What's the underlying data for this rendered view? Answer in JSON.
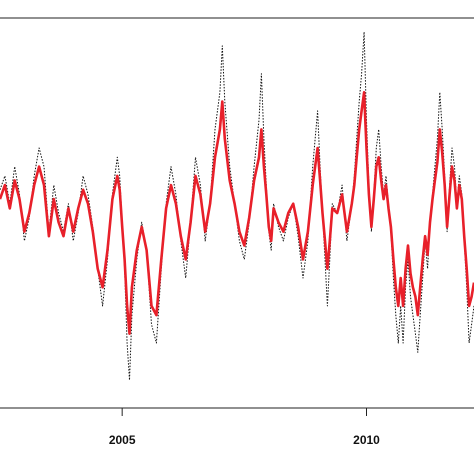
{
  "chart_data": {
    "type": "line",
    "title": "",
    "xlabel": "",
    "ylabel": "",
    "xlim": [
      2002.5,
      2012.2
    ],
    "ylim": [
      -4.2,
      4.2
    ],
    "grid": false,
    "x_ticks": [
      {
        "value": 2005,
        "label": "2005"
      },
      {
        "value": 2010,
        "label": "2010"
      }
    ],
    "series": [
      {
        "style": "dotted",
        "color": "#111111",
        "points": [
          [
            2002.5,
            0.5
          ],
          [
            2002.6,
            0.8
          ],
          [
            2002.7,
            0.2
          ],
          [
            2002.8,
            1.0
          ],
          [
            2002.9,
            0.4
          ],
          [
            2003.0,
            -0.6
          ],
          [
            2003.1,
            -0.1
          ],
          [
            2003.2,
            0.8
          ],
          [
            2003.3,
            1.4
          ],
          [
            2003.4,
            1.0
          ],
          [
            2003.5,
            -0.4
          ],
          [
            2003.6,
            0.6
          ],
          [
            2003.7,
            0.0
          ],
          [
            2003.8,
            -0.4
          ],
          [
            2003.9,
            0.2
          ],
          [
            2004.0,
            -0.6
          ],
          [
            2004.1,
            0.0
          ],
          [
            2004.2,
            0.8
          ],
          [
            2004.3,
            0.4
          ],
          [
            2004.4,
            -0.3
          ],
          [
            2004.5,
            -1.2
          ],
          [
            2004.6,
            -2.0
          ],
          [
            2004.7,
            -1.0
          ],
          [
            2004.8,
            0.4
          ],
          [
            2004.9,
            1.2
          ],
          [
            2004.95,
            0.8
          ],
          [
            2005.0,
            -0.2
          ],
          [
            2005.05,
            -1.2
          ],
          [
            2005.1,
            -2.8
          ],
          [
            2005.15,
            -3.6
          ],
          [
            2005.2,
            -2.2
          ],
          [
            2005.3,
            -1.0
          ],
          [
            2005.4,
            -0.2
          ],
          [
            2005.5,
            -0.8
          ],
          [
            2005.6,
            -2.4
          ],
          [
            2005.7,
            -2.8
          ],
          [
            2005.8,
            -1.2
          ],
          [
            2005.9,
            0.2
          ],
          [
            2006.0,
            1.0
          ],
          [
            2006.1,
            0.4
          ],
          [
            2006.2,
            -0.6
          ],
          [
            2006.3,
            -1.4
          ],
          [
            2006.4,
            -0.2
          ],
          [
            2006.5,
            1.2
          ],
          [
            2006.6,
            0.6
          ],
          [
            2006.7,
            -0.6
          ],
          [
            2006.8,
            0.2
          ],
          [
            2006.9,
            1.8
          ],
          [
            2007.0,
            2.6
          ],
          [
            2007.05,
            3.6
          ],
          [
            2007.1,
            2.4
          ],
          [
            2007.2,
            1.0
          ],
          [
            2007.3,
            0.2
          ],
          [
            2007.4,
            -0.6
          ],
          [
            2007.5,
            -1.0
          ],
          [
            2007.6,
            -0.2
          ],
          [
            2007.7,
            1.0
          ],
          [
            2007.8,
            2.0
          ],
          [
            2007.85,
            3.0
          ],
          [
            2007.9,
            1.6
          ],
          [
            2007.95,
            0.6
          ],
          [
            2008.0,
            -0.4
          ],
          [
            2008.05,
            -0.8
          ],
          [
            2008.1,
            0.2
          ],
          [
            2008.2,
            -0.3
          ],
          [
            2008.3,
            -0.6
          ],
          [
            2008.4,
            -0.1
          ],
          [
            2008.5,
            0.2
          ],
          [
            2008.6,
            -0.5
          ],
          [
            2008.7,
            -1.4
          ],
          [
            2008.8,
            -0.6
          ],
          [
            2008.9,
            1.0
          ],
          [
            2009.0,
            2.2
          ],
          [
            2009.05,
            1.0
          ],
          [
            2009.1,
            0.0
          ],
          [
            2009.15,
            -1.0
          ],
          [
            2009.2,
            -2.0
          ],
          [
            2009.25,
            -1.0
          ],
          [
            2009.3,
            0.2
          ],
          [
            2009.4,
            0.0
          ],
          [
            2009.5,
            0.6
          ],
          [
            2009.6,
            -0.6
          ],
          [
            2009.65,
            -0.2
          ],
          [
            2009.7,
            0.2
          ],
          [
            2009.75,
            0.8
          ],
          [
            2009.8,
            1.6
          ],
          [
            2009.85,
            2.4
          ],
          [
            2009.9,
            3.0
          ],
          [
            2009.95,
            3.9
          ],
          [
            2010.0,
            2.0
          ],
          [
            2010.05,
            0.6
          ],
          [
            2010.1,
            -0.4
          ],
          [
            2010.15,
            0.4
          ],
          [
            2010.2,
            1.4
          ],
          [
            2010.25,
            1.8
          ],
          [
            2010.3,
            1.0
          ],
          [
            2010.35,
            0.4
          ],
          [
            2010.4,
            0.8
          ],
          [
            2010.45,
            0.2
          ],
          [
            2010.5,
            -0.4
          ],
          [
            2010.55,
            -1.4
          ],
          [
            2010.6,
            -2.2
          ],
          [
            2010.65,
            -2.8
          ],
          [
            2010.7,
            -2.0
          ],
          [
            2010.75,
            -2.8
          ],
          [
            2010.8,
            -1.6
          ],
          [
            2010.85,
            -1.0
          ],
          [
            2010.9,
            -1.8
          ],
          [
            2010.95,
            -2.2
          ],
          [
            2011.0,
            -2.6
          ],
          [
            2011.05,
            -3.0
          ],
          [
            2011.1,
            -2.2
          ],
          [
            2011.15,
            -1.4
          ],
          [
            2011.2,
            -0.6
          ],
          [
            2011.25,
            -1.2
          ],
          [
            2011.3,
            -0.2
          ],
          [
            2011.35,
            0.4
          ],
          [
            2011.4,
            1.0
          ],
          [
            2011.45,
            1.6
          ],
          [
            2011.5,
            2.6
          ],
          [
            2011.55,
            1.8
          ],
          [
            2011.6,
            0.8
          ],
          [
            2011.65,
            -0.4
          ],
          [
            2011.7,
            0.6
          ],
          [
            2011.75,
            1.4
          ],
          [
            2011.8,
            1.0
          ],
          [
            2011.85,
            0.2
          ],
          [
            2011.9,
            0.8
          ],
          [
            2011.95,
            0.4
          ],
          [
            2012.0,
            -0.6
          ],
          [
            2012.05,
            -1.6
          ],
          [
            2012.1,
            -2.8
          ],
          [
            2012.15,
            -2.4
          ],
          [
            2012.2,
            -2.0
          ]
        ]
      },
      {
        "style": "solid",
        "color": "#e8202a",
        "points": [
          [
            2002.5,
            0.3
          ],
          [
            2002.6,
            0.6
          ],
          [
            2002.7,
            0.1
          ],
          [
            2002.8,
            0.7
          ],
          [
            2002.9,
            0.3
          ],
          [
            2003.0,
            -0.4
          ],
          [
            2003.1,
            0.0
          ],
          [
            2003.2,
            0.6
          ],
          [
            2003.3,
            1.0
          ],
          [
            2003.4,
            0.6
          ],
          [
            2003.5,
            -0.5
          ],
          [
            2003.6,
            0.3
          ],
          [
            2003.7,
            -0.2
          ],
          [
            2003.8,
            -0.5
          ],
          [
            2003.9,
            0.1
          ],
          [
            2004.0,
            -0.4
          ],
          [
            2004.1,
            0.1
          ],
          [
            2004.2,
            0.5
          ],
          [
            2004.3,
            0.2
          ],
          [
            2004.4,
            -0.4
          ],
          [
            2004.5,
            -1.2
          ],
          [
            2004.6,
            -1.6
          ],
          [
            2004.7,
            -0.8
          ],
          [
            2004.8,
            0.3
          ],
          [
            2004.9,
            0.8
          ],
          [
            2004.95,
            0.5
          ],
          [
            2005.0,
            -0.3
          ],
          [
            2005.05,
            -1.0
          ],
          [
            2005.1,
            -2.0
          ],
          [
            2005.15,
            -2.6
          ],
          [
            2005.2,
            -1.6
          ],
          [
            2005.3,
            -0.8
          ],
          [
            2005.4,
            -0.3
          ],
          [
            2005.5,
            -0.8
          ],
          [
            2005.6,
            -2.0
          ],
          [
            2005.7,
            -2.2
          ],
          [
            2005.8,
            -1.0
          ],
          [
            2005.9,
            0.1
          ],
          [
            2006.0,
            0.6
          ],
          [
            2006.1,
            0.2
          ],
          [
            2006.2,
            -0.5
          ],
          [
            2006.3,
            -1.0
          ],
          [
            2006.4,
            -0.2
          ],
          [
            2006.5,
            0.8
          ],
          [
            2006.6,
            0.4
          ],
          [
            2006.7,
            -0.4
          ],
          [
            2006.8,
            0.2
          ],
          [
            2006.9,
            1.2
          ],
          [
            2007.0,
            1.8
          ],
          [
            2007.05,
            2.4
          ],
          [
            2007.1,
            1.6
          ],
          [
            2007.2,
            0.7
          ],
          [
            2007.3,
            0.2
          ],
          [
            2007.4,
            -0.4
          ],
          [
            2007.5,
            -0.7
          ],
          [
            2007.6,
            -0.1
          ],
          [
            2007.7,
            0.7
          ],
          [
            2007.8,
            1.2
          ],
          [
            2007.85,
            1.8
          ],
          [
            2007.9,
            1.0
          ],
          [
            2007.95,
            0.4
          ],
          [
            2008.0,
            -0.3
          ],
          [
            2008.05,
            -0.6
          ],
          [
            2008.1,
            0.1
          ],
          [
            2008.2,
            -0.2
          ],
          [
            2008.3,
            -0.4
          ],
          [
            2008.4,
            0.0
          ],
          [
            2008.5,
            0.2
          ],
          [
            2008.6,
            -0.3
          ],
          [
            2008.7,
            -1.0
          ],
          [
            2008.8,
            -0.4
          ],
          [
            2008.9,
            0.6
          ],
          [
            2009.0,
            1.4
          ],
          [
            2009.05,
            0.7
          ],
          [
            2009.1,
            0.0
          ],
          [
            2009.15,
            -0.6
          ],
          [
            2009.2,
            -1.2
          ],
          [
            2009.25,
            -0.6
          ],
          [
            2009.3,
            0.1
          ],
          [
            2009.4,
            0.0
          ],
          [
            2009.5,
            0.4
          ],
          [
            2009.6,
            -0.4
          ],
          [
            2009.65,
            -0.1
          ],
          [
            2009.7,
            0.2
          ],
          [
            2009.75,
            0.6
          ],
          [
            2009.8,
            1.2
          ],
          [
            2009.85,
            1.8
          ],
          [
            2009.9,
            2.2
          ],
          [
            2009.95,
            2.6
          ],
          [
            2010.0,
            1.4
          ],
          [
            2010.05,
            0.4
          ],
          [
            2010.1,
            -0.3
          ],
          [
            2010.15,
            0.3
          ],
          [
            2010.2,
            1.0
          ],
          [
            2010.25,
            1.2
          ],
          [
            2010.3,
            0.7
          ],
          [
            2010.35,
            0.3
          ],
          [
            2010.4,
            0.6
          ],
          [
            2010.45,
            0.1
          ],
          [
            2010.5,
            -0.3
          ],
          [
            2010.55,
            -1.0
          ],
          [
            2010.6,
            -1.6
          ],
          [
            2010.65,
            -2.0
          ],
          [
            2010.7,
            -1.4
          ],
          [
            2010.75,
            -2.0
          ],
          [
            2010.8,
            -1.2
          ],
          [
            2010.85,
            -0.7
          ],
          [
            2010.9,
            -1.3
          ],
          [
            2010.95,
            -1.6
          ],
          [
            2011.0,
            -1.8
          ],
          [
            2011.05,
            -2.2
          ],
          [
            2011.1,
            -1.6
          ],
          [
            2011.15,
            -1.0
          ],
          [
            2011.2,
            -0.5
          ],
          [
            2011.25,
            -0.9
          ],
          [
            2011.3,
            -0.2
          ],
          [
            2011.35,
            0.3
          ],
          [
            2011.4,
            0.7
          ],
          [
            2011.45,
            1.1
          ],
          [
            2011.5,
            1.8
          ],
          [
            2011.55,
            1.3
          ],
          [
            2011.6,
            0.6
          ],
          [
            2011.65,
            -0.3
          ],
          [
            2011.7,
            0.4
          ],
          [
            2011.75,
            1.0
          ],
          [
            2011.8,
            0.7
          ],
          [
            2011.85,
            0.1
          ],
          [
            2011.9,
            0.6
          ],
          [
            2011.95,
            0.3
          ],
          [
            2012.0,
            -0.5
          ],
          [
            2012.05,
            -1.2
          ],
          [
            2012.1,
            -2.0
          ],
          [
            2012.15,
            -1.8
          ],
          [
            2012.2,
            -1.5
          ]
        ]
      }
    ]
  }
}
